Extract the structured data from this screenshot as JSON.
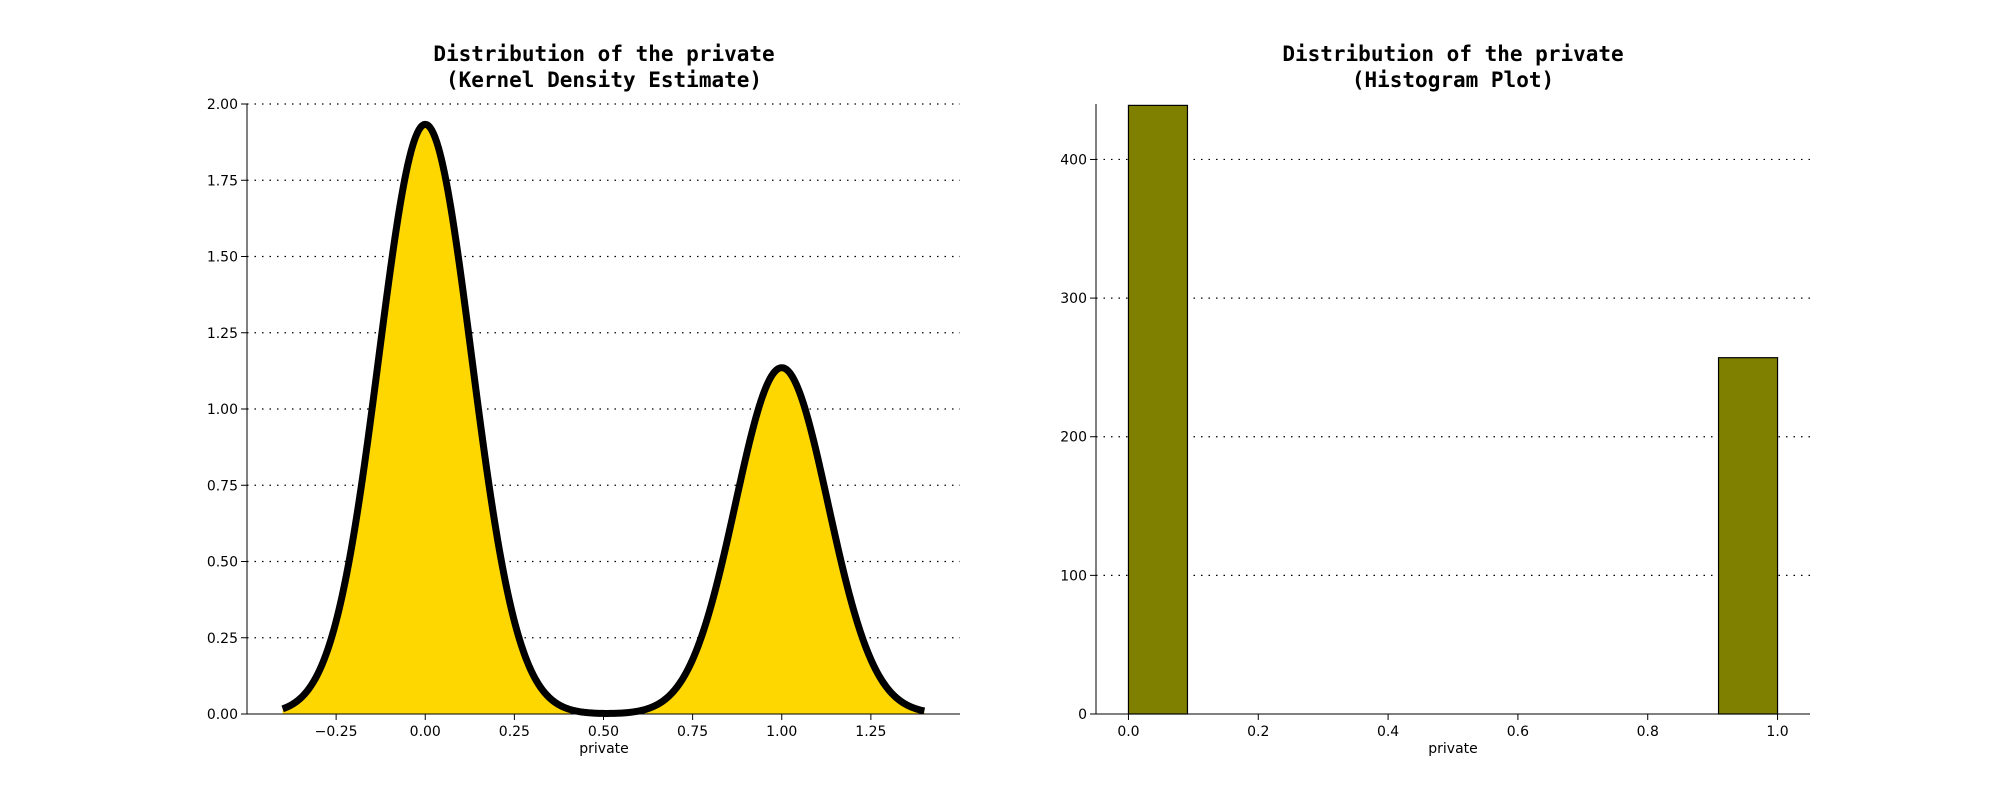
{
  "colors": {
    "kde_fill": "#FFD700",
    "kde_line": "#000000",
    "hist_fill": "#808000",
    "hist_edge": "#000000",
    "grid": "#000000",
    "axis": "#000000"
  },
  "chart_data": [
    {
      "type": "area",
      "title_lines": [
        "Distribution of the private",
        "(Kernel Density Estimate)"
      ],
      "xlabel": "private",
      "ylabel": "",
      "xlim": [
        -0.5,
        1.5
      ],
      "ylim": [
        0,
        2.0
      ],
      "grid": "horizontal-dotted",
      "x_ticks": [
        -0.25,
        0.0,
        0.25,
        0.5,
        0.75,
        1.0,
        1.25
      ],
      "x_tick_labels": [
        "−0.25",
        "0.00",
        "0.25",
        "0.50",
        "0.75",
        "1.00",
        "1.25"
      ],
      "y_ticks": [
        0,
        0.25,
        0.5,
        0.75,
        1.0,
        1.25,
        1.5,
        1.75,
        2.0
      ],
      "y_tick_labels": [
        "0.00",
        "0.25",
        "0.50",
        "0.75",
        "1.00",
        "1.25",
        "1.50",
        "1.75",
        "2.00"
      ],
      "curve_x_range": [
        -0.4,
        1.4
      ],
      "components": [
        {
          "mean": 0.0,
          "sd": 0.13,
          "weight": 0.63
        },
        {
          "mean": 1.0,
          "sd": 0.13,
          "weight": 0.37
        }
      ],
      "peaks": [
        {
          "x": 0.0,
          "y": 1.93
        },
        {
          "x": 1.0,
          "y": 1.13
        }
      ]
    },
    {
      "type": "bar",
      "title_lines": [
        "Distribution of the private",
        "(Histogram Plot)"
      ],
      "xlabel": "private",
      "ylabel": "",
      "xlim": [
        -0.05,
        1.05
      ],
      "ylim": [
        0,
        440
      ],
      "grid": "horizontal-dotted",
      "x_ticks": [
        0.0,
        0.2,
        0.4,
        0.6,
        0.8,
        1.0
      ],
      "x_tick_labels": [
        "0.0",
        "0.2",
        "0.4",
        "0.6",
        "0.8",
        "1.0"
      ],
      "y_ticks": [
        0,
        100,
        200,
        300,
        400
      ],
      "y_tick_labels": [
        "0",
        "100",
        "200",
        "300",
        "400"
      ],
      "bins": [
        {
          "x0": 0.0,
          "x1": 0.0909,
          "count": 439
        },
        {
          "x0": 0.9091,
          "x1": 1.0,
          "count": 257
        }
      ]
    }
  ]
}
